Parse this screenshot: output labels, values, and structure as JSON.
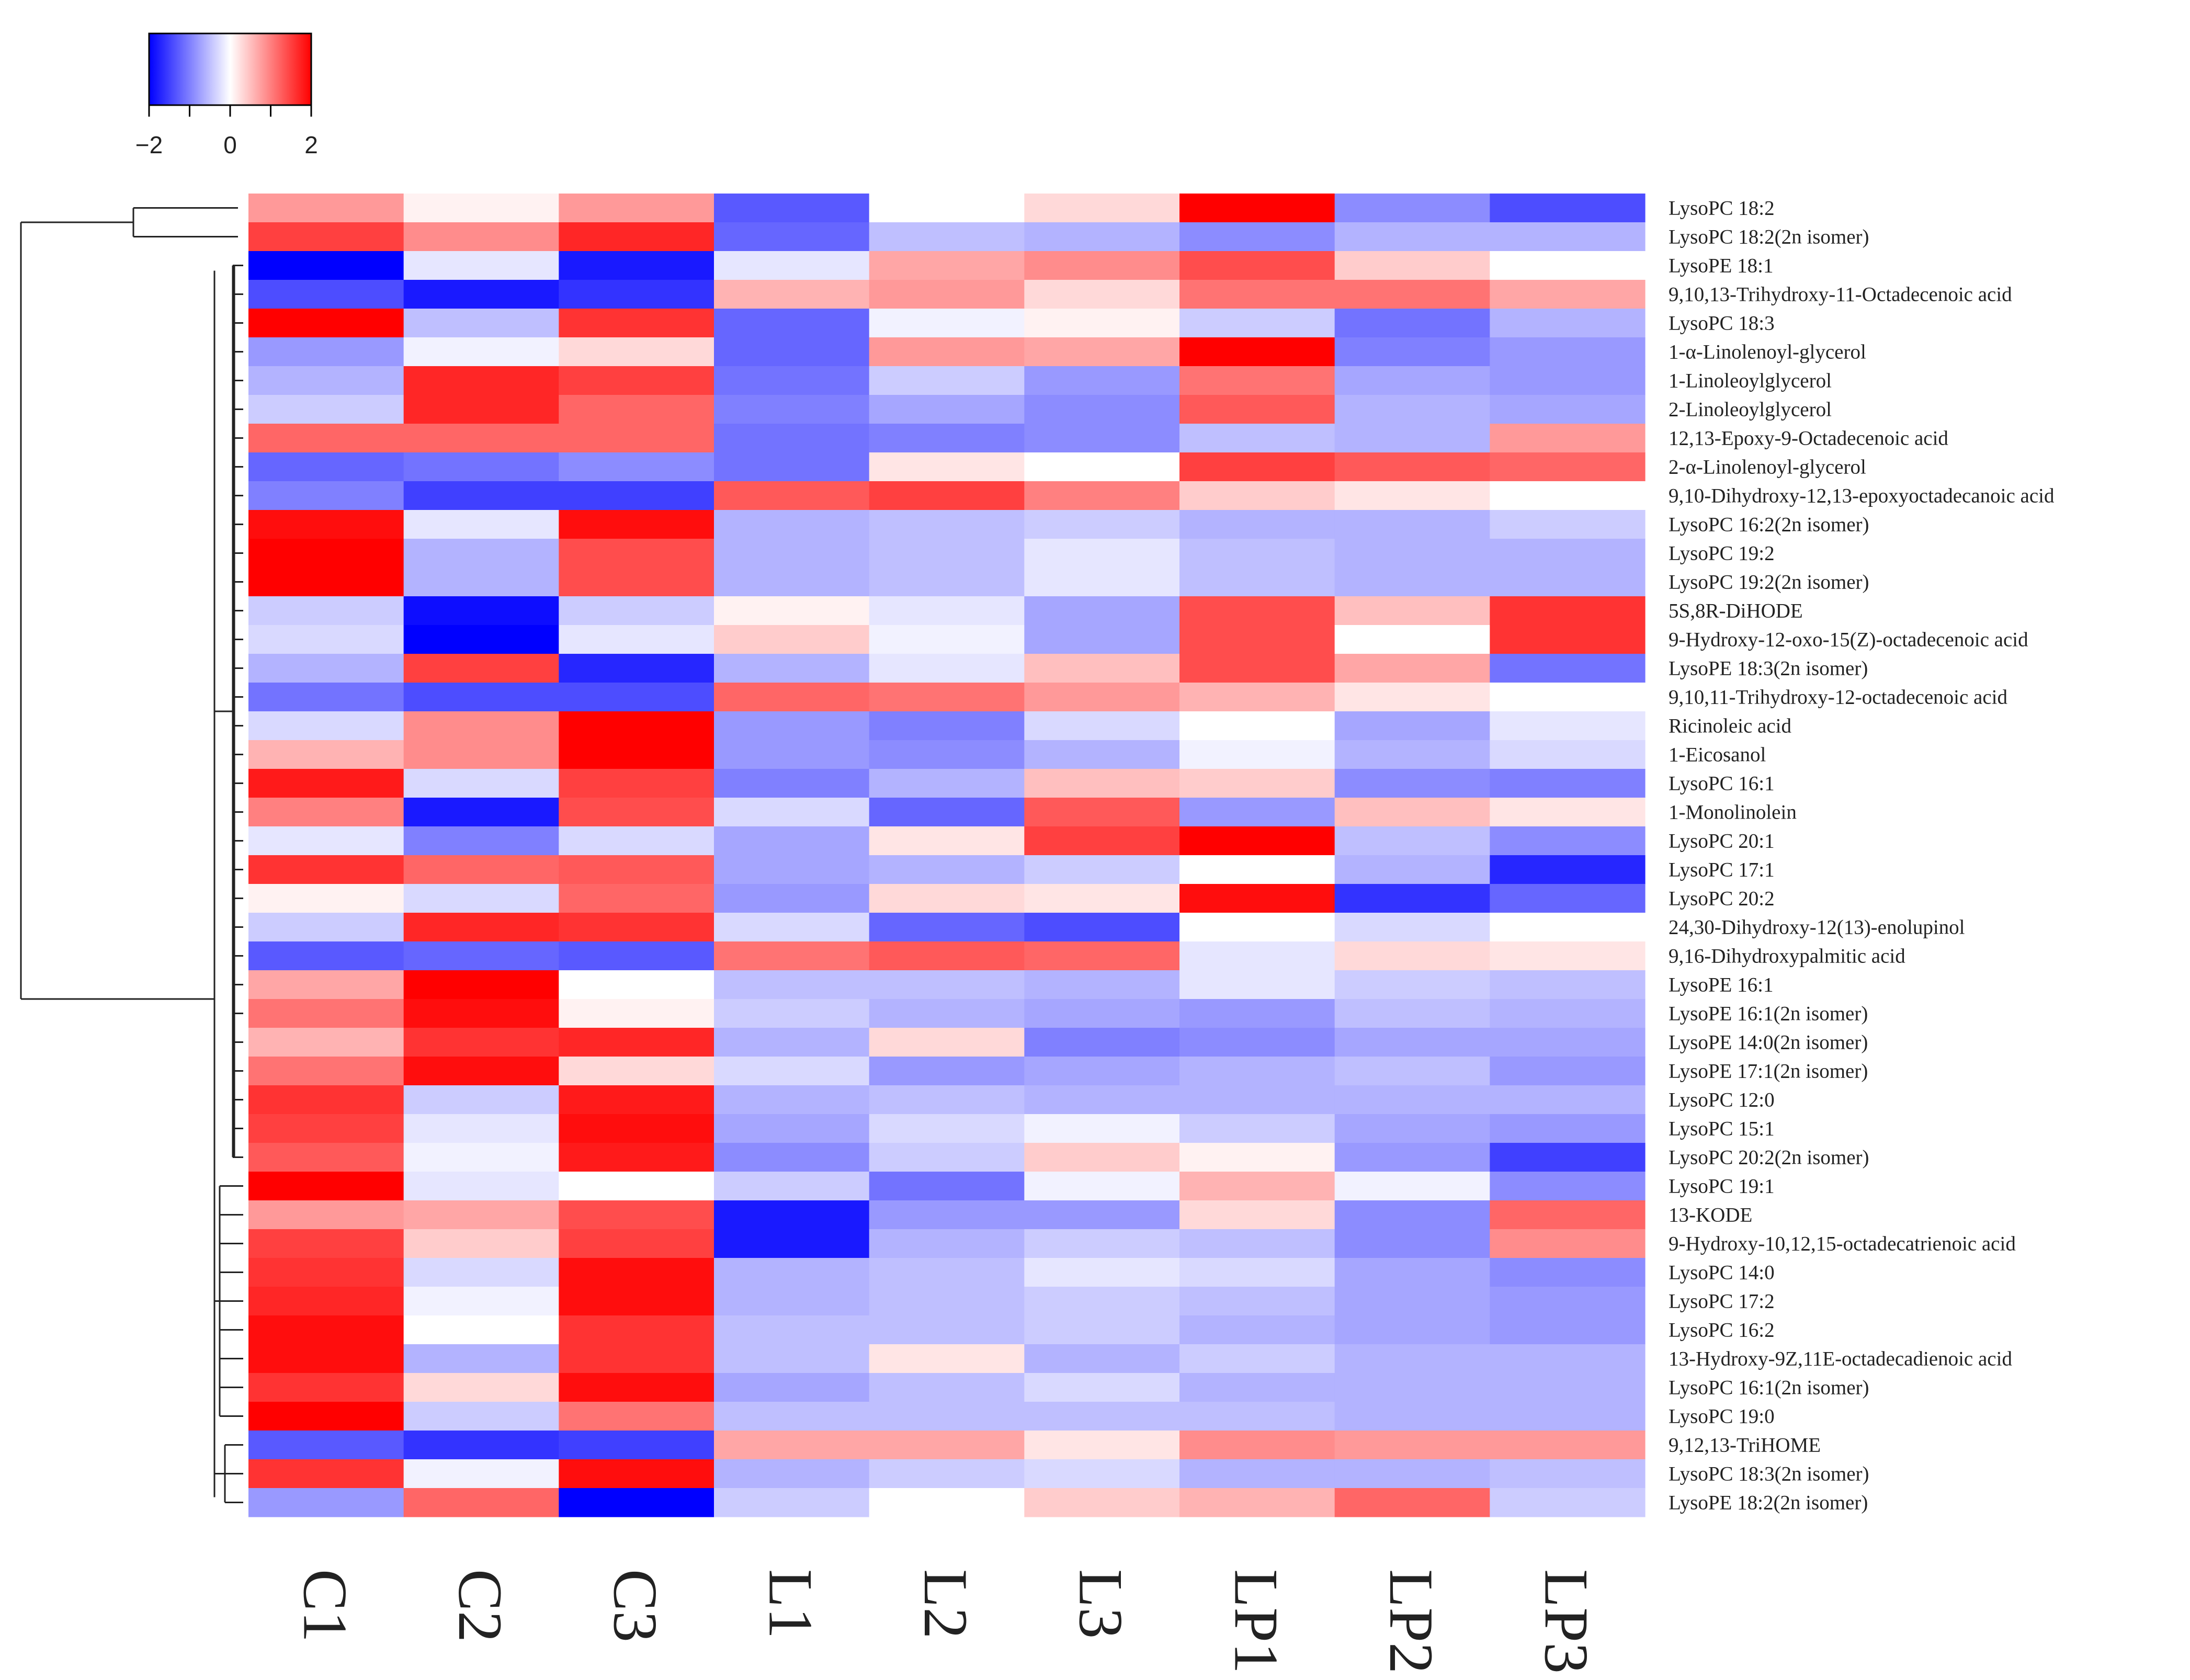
{
  "chart_data": {
    "type": "heatmap",
    "title": "",
    "color_scale": {
      "min": -2,
      "max": 2,
      "ticks": [
        -2,
        0,
        2
      ],
      "tick_labels": [
        "−2",
        "0",
        "2"
      ],
      "low_color": "#0000ff",
      "mid_color": "#ffffff",
      "high_color": "#ff0000"
    },
    "columns": [
      "C1",
      "C2",
      "C3",
      "L1",
      "L2",
      "L3",
      "LP1",
      "LP2",
      "LP3"
    ],
    "rows": [
      "LysoPC 18:2",
      "LysoPC 18:2(2n isomer)",
      "LysoPE 18:1",
      "9,10,13-Trihydroxy-11-Octadecenoic acid",
      "LysoPC 18:3",
      "1-α-Linolenoyl-glycerol",
      "1-Linoleoylglycerol",
      "2-Linoleoylglycerol",
      "12,13-Epoxy-9-Octadecenoic acid",
      "2-α-Linolenoyl-glycerol",
      "9,10-Dihydroxy-12,13-epoxyoctadecanoic acid",
      "LysoPC 16:2(2n isomer)",
      "LysoPC 19:2",
      "LysoPC 19:2(2n isomer)",
      "5S,8R-DiHODE",
      "9-Hydroxy-12-oxo-15(Z)-octadecenoic acid",
      "LysoPE 18:3(2n isomer)",
      "9,10,11-Trihydroxy-12-octadecenoic acid",
      "Ricinoleic acid",
      "1-Eicosanol",
      "LysoPC 16:1",
      "1-Monolinolein",
      "LysoPC 20:1",
      "LysoPC 17:1",
      "LysoPC 20:2",
      "24,30-Dihydroxy-12(13)-enolupinol",
      "9,16-Dihydroxypalmitic acid",
      "LysoPE 16:1",
      "LysoPE 16:1(2n isomer)",
      "LysoPE 14:0(2n isomer)",
      "LysoPE 17:1(2n isomer)",
      "LysoPC 12:0",
      "LysoPC 15:1",
      "LysoPC 20:2(2n isomer)",
      "LysoPC 19:1",
      "13-KODE",
      "9-Hydroxy-10,12,15-octadecatrienoic acid",
      "LysoPC 14:0",
      "LysoPC 17:2",
      "LysoPC 16:2",
      "13-Hydroxy-9Z,11E-octadecadienoic acid",
      "LysoPC 16:1(2n isomer)",
      "LysoPC 19:0",
      "9,12,13-TriHOME",
      "LysoPC 18:3(2n isomer)",
      "LysoPE 18:2(2n isomer)"
    ],
    "values": [
      [
        0.8,
        0.1,
        0.8,
        -1.3,
        0.0,
        0.3,
        2.0,
        -0.9,
        -1.4
      ],
      [
        1.5,
        0.9,
        1.7,
        -1.2,
        -0.5,
        -0.6,
        -0.9,
        -0.6,
        -0.6
      ],
      [
        -2.0,
        -0.2,
        -1.8,
        -0.2,
        0.7,
        0.9,
        1.4,
        0.4,
        0.0
      ],
      [
        -1.4,
        -1.8,
        -1.6,
        0.6,
        0.8,
        0.3,
        1.1,
        1.1,
        0.7
      ],
      [
        2.0,
        -0.5,
        1.6,
        -1.2,
        -0.1,
        0.1,
        -0.4,
        -1.1,
        -0.6
      ],
      [
        -0.8,
        -0.1,
        0.3,
        -1.2,
        0.8,
        0.7,
        2.0,
        -1.0,
        -0.8
      ],
      [
        -0.6,
        1.7,
        1.5,
        -1.1,
        -0.4,
        -0.8,
        1.1,
        -0.7,
        -0.8
      ],
      [
        -0.4,
        1.7,
        1.2,
        -1.0,
        -0.7,
        -0.9,
        1.3,
        -0.6,
        -0.7
      ],
      [
        1.2,
        1.2,
        1.2,
        -1.1,
        -1.0,
        -0.9,
        -0.5,
        -0.6,
        0.8
      ],
      [
        -1.2,
        -1.1,
        -0.9,
        -1.1,
        0.2,
        0.0,
        1.5,
        1.3,
        1.2
      ],
      [
        -1.0,
        -1.5,
        -1.5,
        1.3,
        1.5,
        1.0,
        0.4,
        0.2,
        0.0
      ],
      [
        1.9,
        -0.2,
        1.9,
        -0.6,
        -0.5,
        -0.4,
        -0.6,
        -0.6,
        -0.4
      ],
      [
        2.0,
        -0.6,
        1.4,
        -0.6,
        -0.5,
        -0.2,
        -0.5,
        -0.6,
        -0.6
      ],
      [
        2.0,
        -0.6,
        1.4,
        -0.6,
        -0.5,
        -0.2,
        -0.5,
        -0.6,
        -0.6
      ],
      [
        -0.4,
        -1.9,
        -0.4,
        0.1,
        -0.2,
        -0.7,
        1.4,
        0.5,
        1.6
      ],
      [
        -0.3,
        -2.0,
        -0.2,
        0.4,
        -0.1,
        -0.7,
        1.4,
        0.0,
        1.6
      ],
      [
        -0.6,
        1.5,
        -1.7,
        -0.6,
        -0.2,
        0.5,
        1.4,
        0.7,
        -1.1
      ],
      [
        -1.1,
        -1.4,
        -1.4,
        1.2,
        1.1,
        0.8,
        0.6,
        0.2,
        0.0
      ],
      [
        -0.3,
        0.9,
        2.0,
        -0.8,
        -1.0,
        -0.3,
        0.0,
        -0.7,
        -0.2
      ],
      [
        0.6,
        0.9,
        2.0,
        -0.8,
        -0.9,
        -0.6,
        -0.1,
        -0.6,
        -0.3
      ],
      [
        1.8,
        -0.3,
        1.5,
        -1.0,
        -0.6,
        0.5,
        0.4,
        -0.9,
        -1.0
      ],
      [
        1.0,
        -1.8,
        1.4,
        -0.3,
        -1.2,
        1.3,
        -0.8,
        0.5,
        0.2
      ],
      [
        -0.2,
        -1.0,
        -0.3,
        -0.7,
        0.2,
        1.5,
        2.0,
        -0.5,
        -0.9
      ],
      [
        1.6,
        1.2,
        1.3,
        -0.7,
        -0.6,
        -0.4,
        0.0,
        -0.6,
        -1.7
      ],
      [
        0.1,
        -0.3,
        1.2,
        -0.8,
        0.3,
        0.2,
        1.9,
        -1.6,
        -1.2
      ],
      [
        -0.4,
        1.7,
        1.6,
        -0.3,
        -1.2,
        -1.4,
        0.0,
        -0.3,
        0.0
      ],
      [
        -1.3,
        -1.2,
        -1.3,
        1.1,
        1.3,
        1.2,
        -0.2,
        0.3,
        0.2
      ],
      [
        0.7,
        2.0,
        0.0,
        -0.5,
        -0.5,
        -0.6,
        -0.2,
        -0.4,
        -0.5
      ],
      [
        1.1,
        1.9,
        0.1,
        -0.4,
        -0.6,
        -0.7,
        -0.8,
        -0.5,
        -0.6
      ],
      [
        0.6,
        1.6,
        1.7,
        -0.6,
        0.3,
        -1.0,
        -0.9,
        -0.7,
        -0.7
      ],
      [
        1.1,
        1.9,
        0.3,
        -0.3,
        -0.8,
        -0.7,
        -0.6,
        -0.5,
        -0.8
      ],
      [
        1.6,
        -0.4,
        1.8,
        -0.6,
        -0.5,
        -0.6,
        -0.6,
        -0.6,
        -0.6
      ],
      [
        1.5,
        -0.2,
        1.9,
        -0.7,
        -0.3,
        -0.1,
        -0.4,
        -0.7,
        -0.8
      ],
      [
        1.3,
        -0.1,
        1.8,
        -0.9,
        -0.4,
        0.4,
        0.1,
        -0.8,
        -1.5
      ],
      [
        2.0,
        -0.2,
        0.0,
        -0.4,
        -1.1,
        -0.1,
        0.6,
        -0.1,
        -0.9
      ],
      [
        0.8,
        0.7,
        1.4,
        -1.8,
        -0.8,
        -0.8,
        0.3,
        -0.9,
        1.2
      ],
      [
        1.5,
        0.4,
        1.5,
        -1.8,
        -0.6,
        -0.4,
        -0.5,
        -0.9,
        0.9
      ],
      [
        1.6,
        -0.3,
        1.9,
        -0.6,
        -0.5,
        -0.2,
        -0.3,
        -0.7,
        -0.9
      ],
      [
        1.7,
        -0.1,
        1.9,
        -0.6,
        -0.5,
        -0.4,
        -0.5,
        -0.7,
        -0.8
      ],
      [
        1.9,
        0.0,
        1.6,
        -0.5,
        -0.5,
        -0.4,
        -0.6,
        -0.7,
        -0.8
      ],
      [
        1.9,
        -0.6,
        1.6,
        -0.5,
        0.2,
        -0.6,
        -0.4,
        -0.6,
        -0.6
      ],
      [
        1.6,
        0.3,
        1.9,
        -0.7,
        -0.5,
        -0.3,
        -0.6,
        -0.6,
        -0.6
      ],
      [
        2.0,
        -0.4,
        1.1,
        -0.5,
        -0.5,
        -0.5,
        -0.5,
        -0.6,
        -0.6
      ],
      [
        -1.3,
        -1.6,
        -1.5,
        0.7,
        0.7,
        0.2,
        0.9,
        0.8,
        0.8
      ],
      [
        1.6,
        -0.1,
        1.9,
        -0.6,
        -0.4,
        -0.3,
        -0.6,
        -0.6,
        -0.5
      ],
      [
        -0.8,
        1.2,
        -2.0,
        -0.4,
        0.0,
        0.4,
        0.6,
        1.2,
        -0.4
      ]
    ]
  }
}
